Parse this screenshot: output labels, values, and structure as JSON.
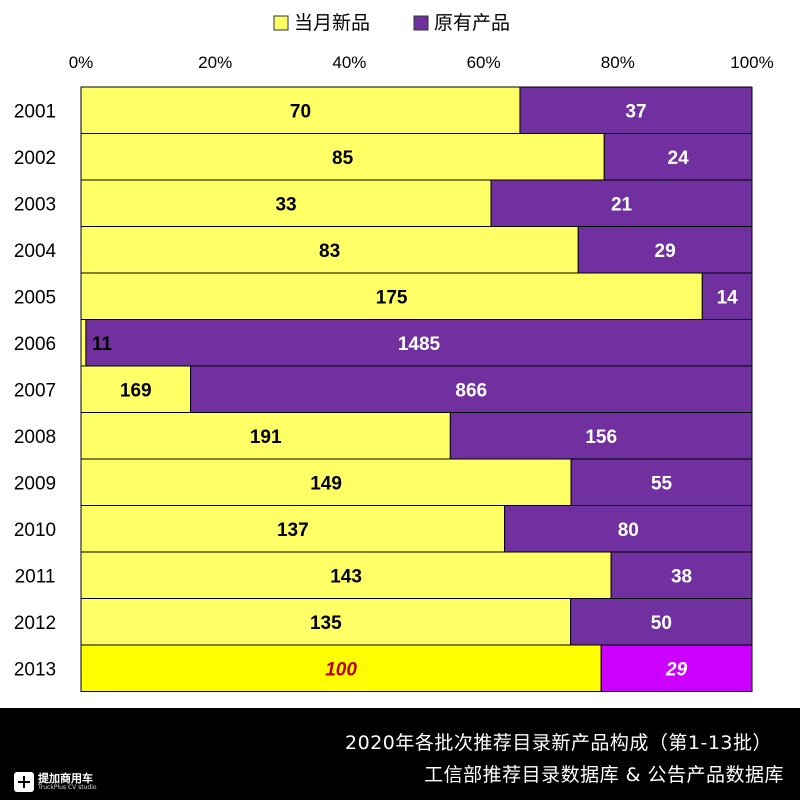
{
  "chart_data": {
    "type": "bar",
    "orientation": "horizontal",
    "stacked": "percent",
    "categories": [
      "2001",
      "2002",
      "2003",
      "2004",
      "2005",
      "2006",
      "2007",
      "2008",
      "2009",
      "2010",
      "2011",
      "2012",
      "2013"
    ],
    "series": [
      {
        "name": "当月新品",
        "color": "#FFFF66",
        "highlight_color": "#FFFF00",
        "values": [
          70,
          85,
          33,
          83,
          175,
          11,
          169,
          191,
          149,
          137,
          143,
          135,
          100
        ]
      },
      {
        "name": "原有产品",
        "color": "#7030A0",
        "highlight_color": "#CC00FF",
        "values": [
          37,
          24,
          21,
          29,
          14,
          1485,
          866,
          156,
          55,
          80,
          38,
          50,
          29
        ]
      }
    ],
    "highlight_category": "2013",
    "x_ticks": [
      "0%",
      "20%",
      "40%",
      "60%",
      "80%",
      "100%"
    ],
    "xlim": [
      0,
      100
    ],
    "legend_position": "top"
  },
  "footer": {
    "title": "2020年各批次推荐目录新产品构成（第1-13批）",
    "source": "工信部推荐目录数据库 & 公告产品数据库",
    "logo_cn": "提加商用车",
    "logo_en": "TruckPlus CV studio"
  }
}
